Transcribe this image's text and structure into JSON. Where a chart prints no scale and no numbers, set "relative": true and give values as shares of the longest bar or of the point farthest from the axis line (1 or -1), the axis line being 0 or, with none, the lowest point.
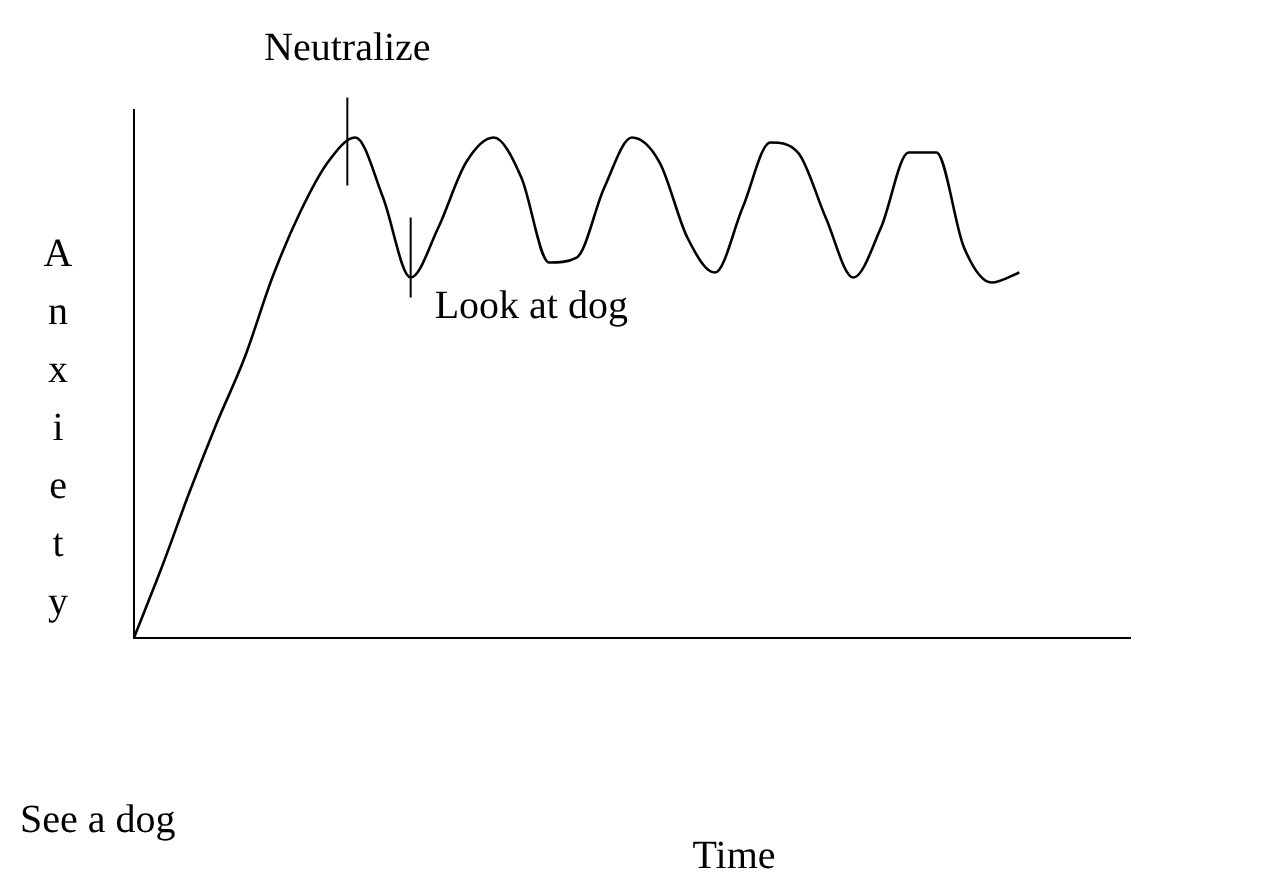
{
  "chart_data": {
    "type": "line",
    "relative": true,
    "xlabel": "Time",
    "ylabel": "Anxiety",
    "color": "#000000",
    "marker": "none",
    "legend": false,
    "grid": false,
    "categories": [
      null,
      null,
      null,
      null,
      null,
      null,
      null,
      null,
      null,
      null,
      null,
      null,
      null,
      null,
      null,
      null,
      null,
      null,
      null,
      null,
      null,
      null,
      null,
      null,
      null,
      null,
      null,
      null,
      null,
      null,
      null,
      null,
      null,
      null,
      null,
      null,
      null
    ],
    "values": [
      0,
      0.14,
      0.29,
      0.43,
      0.56,
      0.72,
      0.85,
      0.95,
      1.0,
      0.88,
      0.72,
      0.82,
      0.95,
      1.0,
      0.92,
      0.75,
      0.76,
      0.9,
      1.0,
      0.95,
      0.8,
      0.73,
      0.86,
      0.99,
      0.97,
      0.84,
      0.72,
      0.82,
      0.97,
      0.97,
      0.78,
      0.71,
      0.73,
      null,
      null,
      null,
      null
    ],
    "annotations": [
      "Neutralize",
      "Look at dog",
      "See a dog"
    ]
  }
}
